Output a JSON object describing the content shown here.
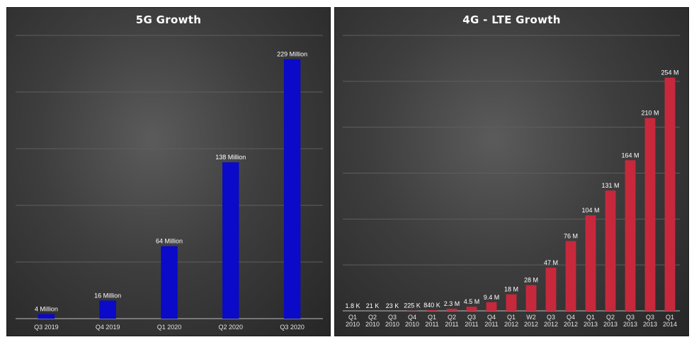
{
  "chart_data": [
    {
      "type": "bar",
      "title": "5G Growth",
      "categories": [
        "Q3 2019",
        "Q4 2019",
        "Q1 2020",
        "Q2 2020",
        "Q3 2020"
      ],
      "values": [
        4,
        16,
        64,
        138,
        229
      ],
      "data_labels": [
        "4 Million",
        "16 Million",
        "64 Million",
        "138 Million",
        "229 Million"
      ],
      "ylim": [
        0,
        250
      ],
      "gridlines": [
        50,
        100,
        150,
        200,
        250
      ],
      "grid": true,
      "bar_color": "#0a0ac8"
    },
    {
      "type": "bar",
      "title": "4G - LTE Growth",
      "categories": [
        [
          "Q1",
          "2010"
        ],
        [
          "Q2",
          "2010"
        ],
        [
          "Q3",
          "2010"
        ],
        [
          "Q4",
          "2010"
        ],
        [
          "Q1",
          "2011"
        ],
        [
          "Q2",
          "2011"
        ],
        [
          "Q3",
          "2011"
        ],
        [
          "Q4",
          "2011"
        ],
        [
          "Q1",
          "2012"
        ],
        [
          "W2",
          "2012"
        ],
        [
          "Q3",
          "2012"
        ],
        [
          "Q4",
          "2012"
        ],
        [
          "Q1",
          "2013"
        ],
        [
          "Q2",
          "2013"
        ],
        [
          "Q3",
          "2013"
        ],
        [
          "Q3",
          "2013"
        ],
        [
          "Q1",
          "2014"
        ]
      ],
      "values": [
        0.0018,
        0.021,
        0.023,
        0.225,
        0.84,
        2.3,
        4.5,
        9.4,
        18,
        28,
        47,
        76,
        104,
        131,
        164,
        210,
        254
      ],
      "data_labels": [
        "1.8 K",
        "21 K",
        "23 K",
        "225 K",
        "840 K",
        "2.3 M",
        "4.5 M",
        "9.4 M",
        "18 M",
        "28 M",
        "47 M",
        "76 M",
        "104 M",
        "131 M",
        "164 M",
        "210 M",
        "254 M"
      ],
      "ylabel_unit": "Million",
      "ylim": [
        0,
        300
      ],
      "gridlines": [
        50,
        100,
        150,
        200,
        250,
        300
      ],
      "grid": true,
      "bar_color": "#c8283c"
    }
  ]
}
